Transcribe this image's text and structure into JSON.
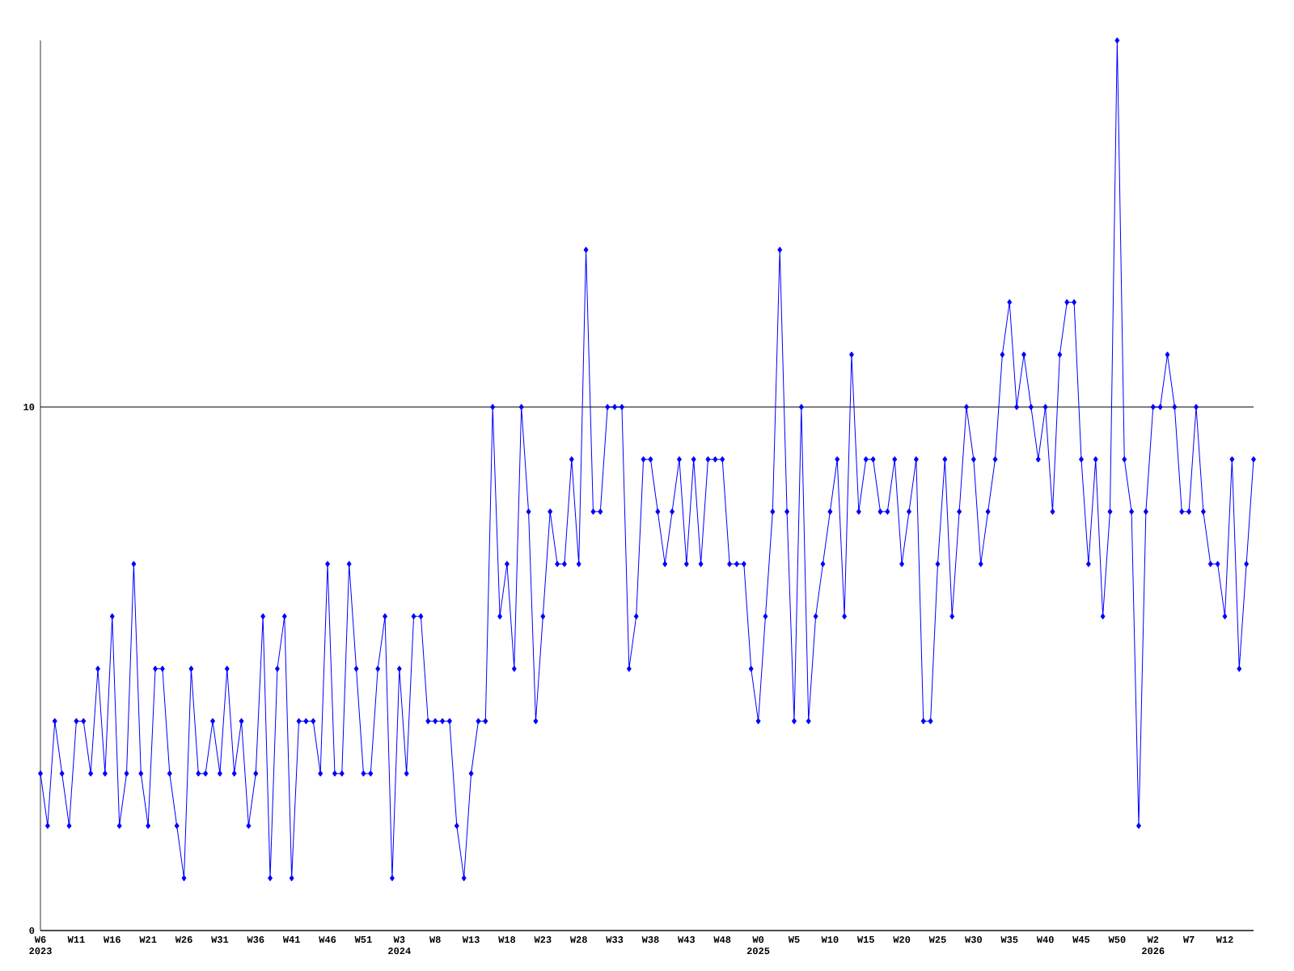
{
  "chart_data": {
    "type": "line",
    "categories": [
      "W6 2023",
      null,
      null,
      null,
      null,
      "W11",
      null,
      null,
      null,
      null,
      "W16",
      null,
      null,
      null,
      null,
      "W21",
      null,
      null,
      null,
      null,
      "W26",
      null,
      null,
      null,
      null,
      "W31",
      null,
      null,
      null,
      null,
      "W36",
      null,
      null,
      null,
      null,
      "W41",
      null,
      null,
      null,
      null,
      "W46",
      null,
      null,
      null,
      null,
      "W51",
      null,
      null,
      null,
      null,
      "W3 2024",
      null,
      null,
      null,
      null,
      "W8",
      null,
      null,
      null,
      null,
      "W13",
      null,
      null,
      null,
      null,
      "W18",
      null,
      null,
      null,
      null,
      "W23",
      null,
      null,
      null,
      null,
      "W28",
      null,
      null,
      null,
      null,
      "W33",
      null,
      null,
      null,
      null,
      "W38",
      null,
      null,
      null,
      null,
      "W43",
      null,
      null,
      null,
      null,
      "W48",
      null,
      null,
      null,
      null,
      "W0 2025",
      null,
      null,
      null,
      null,
      "W5",
      null,
      null,
      null,
      null,
      "W10",
      null,
      null,
      null,
      null,
      "W15",
      null,
      null,
      null,
      null,
      "W20",
      null,
      null,
      null,
      null,
      "W25",
      null,
      null,
      null,
      null,
      "W30",
      null,
      null,
      null,
      null,
      "W35",
      null,
      null,
      null,
      null,
      "W40",
      null,
      null,
      null,
      null,
      "W45",
      null,
      null,
      null,
      null,
      "W50",
      null,
      null,
      null,
      null,
      "W2 2026",
      null,
      null,
      null,
      null,
      "W7",
      null,
      null,
      null,
      null,
      "W12",
      null,
      null,
      null,
      null
    ],
    "series": [
      {
        "color": "#0000ff",
        "values": [
          3,
          2,
          4,
          3,
          2,
          4,
          4,
          3,
          5,
          3,
          6,
          2,
          3,
          7,
          3,
          2,
          5,
          5,
          3,
          2,
          1,
          5,
          3,
          3,
          4,
          3,
          5,
          3,
          4,
          2,
          3,
          6,
          1,
          5,
          6,
          1,
          4,
          4,
          4,
          3,
          7,
          3,
          3,
          7,
          5,
          3,
          3,
          5,
          6,
          1,
          5,
          3,
          6,
          6,
          4,
          4,
          4,
          4,
          2,
          1,
          3,
          4,
          4,
          10,
          6,
          7,
          5,
          10,
          8,
          4,
          6,
          8,
          7,
          7,
          9,
          7,
          13,
          8,
          8,
          10,
          10,
          10,
          5,
          6,
          9,
          9,
          8,
          7,
          8,
          9,
          7,
          9,
          7,
          9,
          9,
          9,
          7,
          7,
          7,
          5,
          4,
          6,
          8,
          13,
          8,
          4,
          10,
          4,
          6,
          7,
          8,
          9,
          6,
          11,
          8,
          9,
          9,
          8,
          8,
          9,
          7,
          8,
          9,
          4,
          4,
          7,
          9,
          6,
          8,
          10,
          9,
          7,
          8,
          9,
          11,
          12,
          10,
          11,
          10,
          9,
          10,
          8,
          11,
          12,
          12,
          9,
          7,
          9,
          6,
          8,
          17,
          9,
          8,
          2,
          8,
          10,
          10,
          11,
          10,
          8,
          8,
          10,
          8,
          7,
          7,
          6,
          9,
          5,
          7,
          9
        ]
      }
    ],
    "ylim": [
      0,
      17
    ],
    "yticks": [
      0,
      10
    ],
    "grid": "y",
    "marker": "diamond",
    "line_style": "solid"
  }
}
